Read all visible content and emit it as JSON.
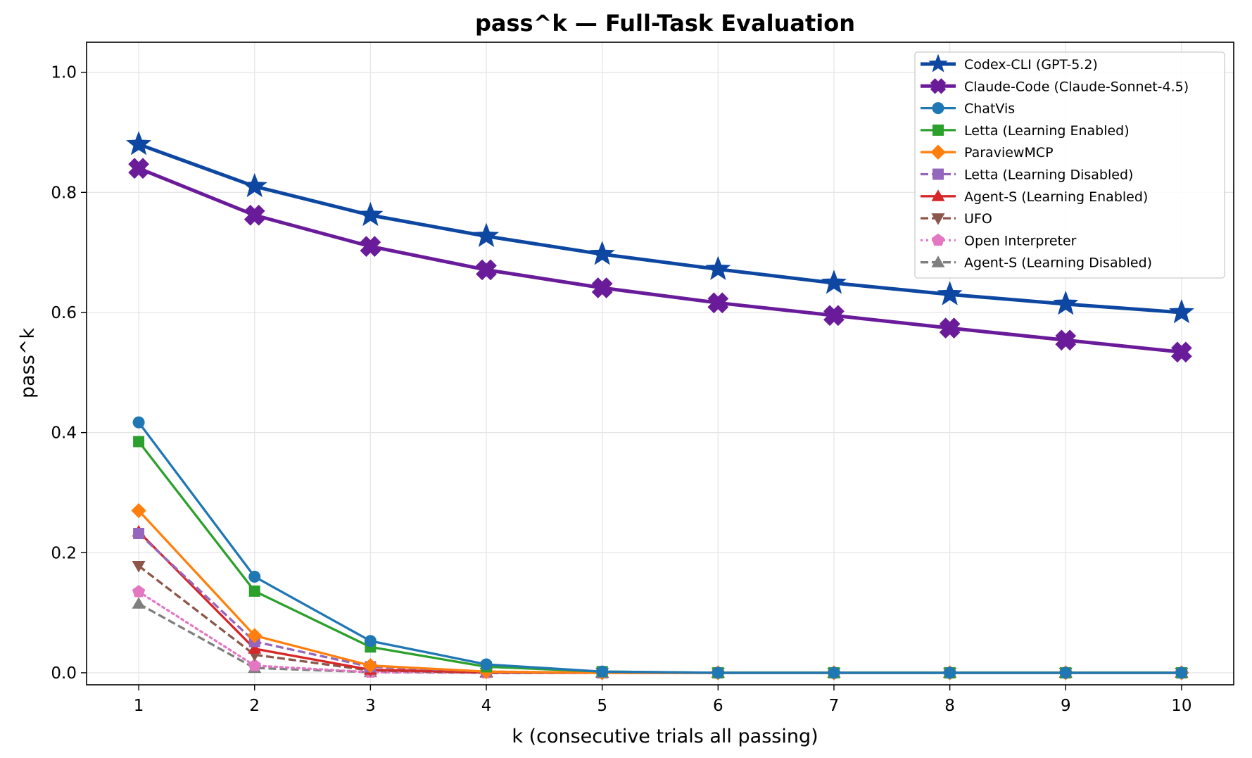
{
  "chart_data": {
    "type": "line",
    "title": "pass^k — Full-Task Evaluation",
    "xlabel": "k (consecutive trials all passing)",
    "ylabel": "pass^k",
    "x": [
      1,
      2,
      3,
      4,
      5,
      6,
      7,
      8,
      9,
      10
    ],
    "xlim": [
      0.55,
      10.45
    ],
    "ylim": [
      -0.02,
      1.05
    ],
    "yticks": [
      0.0,
      0.2,
      0.4,
      0.6,
      0.8,
      1.0
    ],
    "ytick_labels": [
      "0.0",
      "0.2",
      "0.4",
      "0.6",
      "0.8",
      "1.0"
    ],
    "xtick_labels": [
      "1",
      "2",
      "3",
      "4",
      "5",
      "6",
      "7",
      "8",
      "9",
      "10"
    ],
    "grid": true,
    "legend_position": "top-right",
    "series": [
      {
        "name": "Codex-CLI (GPT-5.2)",
        "color": "#0d47a1",
        "marker": "star",
        "dash": "solid",
        "bold": true,
        "values": [
          0.88,
          0.81,
          0.762,
          0.727,
          0.697,
          0.672,
          0.649,
          0.63,
          0.614,
          0.6
        ]
      },
      {
        "name": "Claude-Code (Claude-Sonnet-4.5)",
        "color": "#6a1b9a",
        "marker": "x-filled",
        "dash": "solid",
        "bold": true,
        "values": [
          0.84,
          0.762,
          0.71,
          0.671,
          0.641,
          0.616,
          0.595,
          0.574,
          0.554,
          0.534
        ]
      },
      {
        "name": "ChatVis",
        "color": "#1f77b4",
        "marker": "circle",
        "dash": "solid",
        "values": [
          0.417,
          0.16,
          0.053,
          0.014,
          0.002,
          0.0,
          0.0,
          0.0,
          0.0,
          0.0
        ]
      },
      {
        "name": "Letta (Learning Enabled)",
        "color": "#2ca02c",
        "marker": "square",
        "dash": "solid",
        "values": [
          0.385,
          0.136,
          0.043,
          0.01,
          0.002,
          0.0,
          0.0,
          0.0,
          0.0,
          0.0
        ]
      },
      {
        "name": "ParaviewMCP",
        "color": "#ff7f0e",
        "marker": "diamond",
        "dash": "solid",
        "values": [
          0.27,
          0.062,
          0.012,
          0.002,
          0.0,
          0.0,
          0.0,
          0.0,
          0.0,
          0.0
        ]
      },
      {
        "name": "Letta (Learning Disabled)",
        "color": "#9467bd",
        "marker": "square",
        "dash": "dashed",
        "values": [
          0.232,
          0.052,
          0.01,
          0.002,
          0.0,
          0.0,
          0.0,
          0.0,
          0.0,
          0.0
        ]
      },
      {
        "name": "Agent-S (Learning Enabled)",
        "color": "#d62728",
        "marker": "triangle-up",
        "dash": "solid",
        "values": [
          0.235,
          0.04,
          0.005,
          0.001,
          0.0,
          0.0,
          0.0,
          0.0,
          0.0,
          0.0
        ]
      },
      {
        "name": "UFO",
        "color": "#8c564b",
        "marker": "triangle-down",
        "dash": "dashed",
        "values": [
          0.178,
          0.03,
          0.004,
          0.0,
          0.0,
          0.0,
          0.0,
          0.0,
          0.0,
          0.0
        ]
      },
      {
        "name": "Open Interpreter",
        "color": "#e377c2",
        "marker": "pentagon",
        "dash": "dotted",
        "values": [
          0.135,
          0.012,
          0.001,
          0.0,
          0.0,
          0.0,
          0.0,
          0.0,
          0.0,
          0.0
        ]
      },
      {
        "name": "Agent-S (Learning Disabled)",
        "color": "#7f7f7f",
        "marker": "triangle-up",
        "dash": "dashed",
        "values": [
          0.115,
          0.008,
          0.001,
          0.0,
          0.0,
          0.0,
          0.0,
          0.0,
          0.0,
          0.0
        ]
      }
    ]
  }
}
